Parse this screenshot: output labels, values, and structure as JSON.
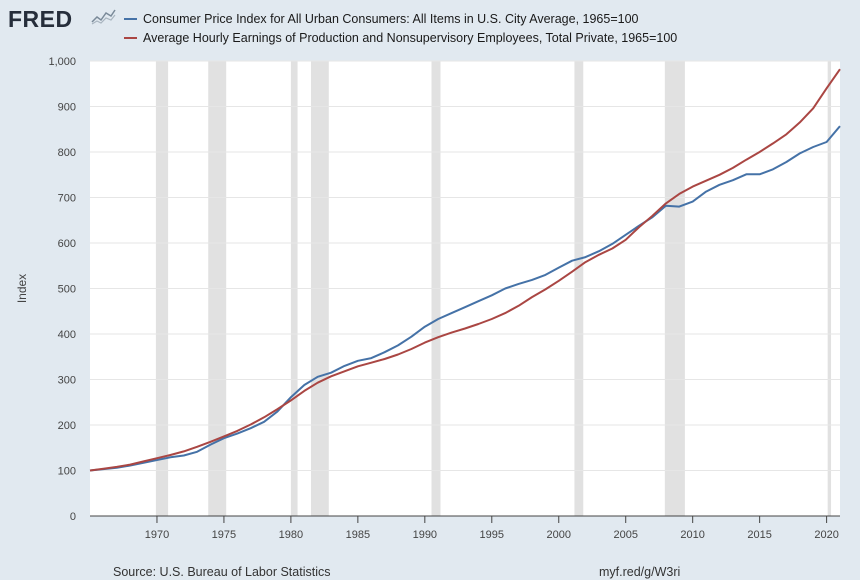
{
  "header": {
    "logo_text": "FRED",
    "logo_icon": "line-graph-icon"
  },
  "legend": [
    {
      "label": "Consumer Price Index for All Urban Consumers: All Items in U.S. City Average, 1965=100",
      "color": "#4572a7"
    },
    {
      "label": "Average Hourly Earnings of Production and Nonsupervisory Employees, Total Private, 1965=100",
      "color": "#aa4643"
    }
  ],
  "footer": {
    "source": "Source: U.S. Bureau of Labor Statistics",
    "link": "myf.red/g/W3ri"
  },
  "chart_data": {
    "type": "line",
    "xlabel": "",
    "ylabel": "Index",
    "xlim": [
      1965,
      2021
    ],
    "ylim": [
      0,
      1000
    ],
    "x_ticks": [
      1970,
      1975,
      1980,
      1985,
      1990,
      1995,
      2000,
      2005,
      2010,
      2015,
      2020
    ],
    "y_ticks": [
      0,
      100,
      200,
      300,
      400,
      500,
      600,
      700,
      800,
      900,
      1000
    ],
    "y_tick_labels": [
      "0",
      "100",
      "200",
      "300",
      "400",
      "500",
      "600",
      "700",
      "800",
      "900",
      "1,000"
    ],
    "grid": true,
    "recessions": [
      [
        1969.92,
        1970.83
      ],
      [
        1973.83,
        1975.17
      ],
      [
        1980.0,
        1980.5
      ],
      [
        1981.5,
        1982.83
      ],
      [
        1990.5,
        1991.17
      ],
      [
        2001.17,
        2001.83
      ],
      [
        2007.92,
        2009.42
      ],
      [
        2020.08,
        2020.33
      ]
    ],
    "x": [
      1965,
      1966,
      1967,
      1968,
      1969,
      1970,
      1971,
      1972,
      1973,
      1974,
      1975,
      1976,
      1977,
      1978,
      1979,
      1980,
      1981,
      1982,
      1983,
      1984,
      1985,
      1986,
      1987,
      1988,
      1989,
      1990,
      1991,
      1992,
      1993,
      1994,
      1995,
      1996,
      1997,
      1998,
      1999,
      2000,
      2001,
      2002,
      2003,
      2004,
      2005,
      2006,
      2007,
      2008,
      2009,
      2010,
      2011,
      2012,
      2013,
      2014,
      2015,
      2016,
      2017,
      2018,
      2019,
      2020,
      2021
    ],
    "series": [
      {
        "name": "Consumer Price Index for All Urban Consumers: All Items in U.S. City Average, 1965=100",
        "color": "#4572a7",
        "values": [
          100,
          103,
          106,
          111,
          117,
          123,
          129,
          133,
          141,
          157,
          171,
          181,
          193,
          207,
          230,
          261,
          288,
          306,
          315,
          330,
          341,
          347,
          360,
          375,
          394,
          416,
          433,
          446,
          459,
          472,
          485,
          500,
          510,
          519,
          530,
          546,
          561,
          569,
          582,
          598,
          618,
          638,
          657,
          682,
          680,
          691,
          713,
          728,
          738,
          751,
          751,
          762,
          778,
          797,
          811,
          822,
          857
        ]
      },
      {
        "name": "Average Hourly Earnings of Production and Nonsupervisory Employees, Total Private, 1965=100",
        "color": "#aa4643",
        "values": [
          100,
          104,
          108,
          113,
          120,
          127,
          134,
          142,
          152,
          163,
          175,
          187,
          201,
          217,
          235,
          254,
          275,
          293,
          307,
          318,
          329,
          337,
          345,
          355,
          367,
          381,
          393,
          403,
          412,
          422,
          433,
          446,
          462,
          481,
          498,
          517,
          537,
          558,
          574,
          588,
          607,
          635,
          660,
          687,
          708,
          724,
          737,
          750,
          765,
          783,
          800,
          819,
          839,
          865,
          896,
          940,
          982
        ]
      }
    ]
  }
}
